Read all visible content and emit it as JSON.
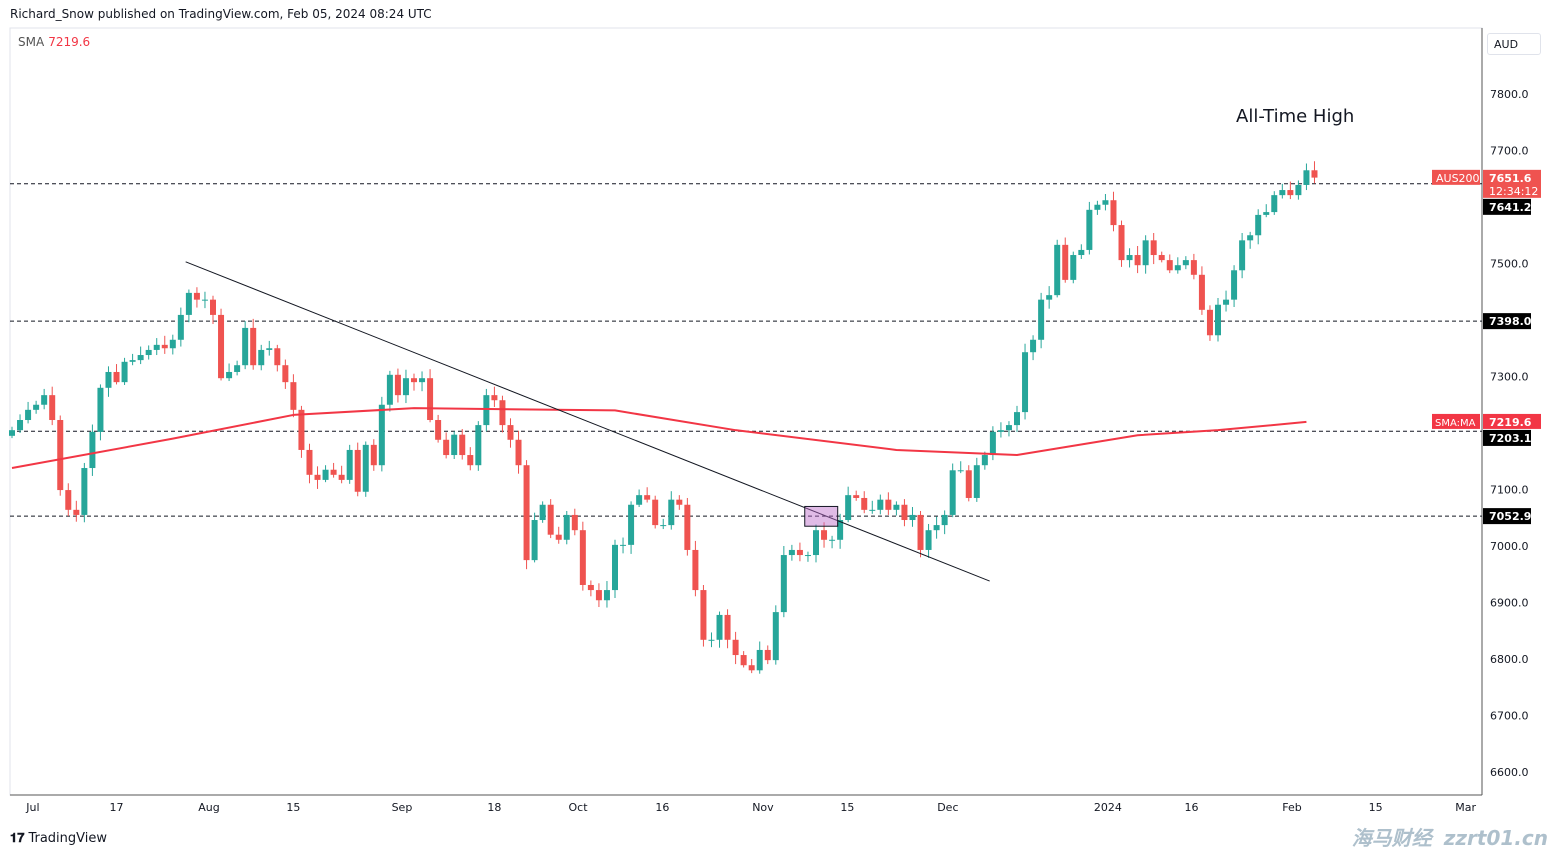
{
  "header": {
    "published": "Richard_Snow published on TradingView.com, Feb 05, 2024 08:24 UTC"
  },
  "legend": {
    "label": "SMA",
    "value": "7219.6"
  },
  "currency": "AUD",
  "footer": {
    "brand": "TradingView"
  },
  "watermark": [
    "海马财经",
    "zzrt01.cn"
  ],
  "colors": {
    "up": "#26a69a",
    "down": "#ef5350",
    "sma": "#f23645",
    "level_label_bg": "#000000"
  },
  "chart_data": {
    "type": "candlestick",
    "symbol": "AUS200",
    "ylim": [
      6600,
      7800
    ],
    "y_ticks": [
      "7800.0",
      "7700.0",
      "7500.0",
      "7300.0",
      "7100.0",
      "7000.0",
      "6900.0",
      "6800.0",
      "6700.0",
      "6600.0"
    ],
    "y_tick_values": [
      7800,
      7700,
      7500,
      7300,
      7100,
      7000,
      6900,
      6800,
      6700,
      6600
    ],
    "x_ticks": [
      {
        "label": "Jul",
        "bar": 2.6
      },
      {
        "label": "17",
        "bar": 13
      },
      {
        "label": "Aug",
        "bar": 24.5
      },
      {
        "label": "15",
        "bar": 35
      },
      {
        "label": "Sep",
        "bar": 48.5
      },
      {
        "label": "18",
        "bar": 60
      },
      {
        "label": "Oct",
        "bar": 70.4
      },
      {
        "label": "16",
        "bar": 80.9
      },
      {
        "label": "Nov",
        "bar": 93.4
      },
      {
        "label": "15",
        "bar": 103.9
      },
      {
        "label": "Dec",
        "bar": 116.4
      },
      {
        "label": "2024",
        "bar": 136.3
      },
      {
        "label": "16",
        "bar": 146.7
      },
      {
        "label": "Feb",
        "bar": 159.2
      },
      {
        "label": "15",
        "bar": 169.6
      },
      {
        "label": "Mar",
        "bar": 180.8
      }
    ],
    "close": [
      7205,
      7223,
      7241,
      7250,
      7267,
      7223,
      7099,
      7064,
      7055,
      7138,
      7202,
      7280,
      7308,
      7290,
      7326,
      7329,
      7338,
      7347,
      7356,
      7350,
      7365,
      7409,
      7448,
      7436,
      7436,
      7409,
      7297,
      7308,
      7320,
      7386,
      7320,
      7347,
      7350,
      7320,
      7290,
      7241,
      7170,
      7126,
      7117,
      7135,
      7126,
      7117,
      7170,
      7096,
      7179,
      7143,
      7250,
      7303,
      7267,
      7297,
      7290,
      7297,
      7223,
      7188,
      7161,
      7197,
      7161,
      7143,
      7214,
      7267,
      7258,
      7214,
      7188,
      7143,
      6975,
      7046,
      7073,
      7020,
      7011,
      7055,
      7028,
      6931,
      6922,
      6904,
      6922,
      7002,
      7002,
      7073,
      7090,
      7082,
      7037,
      7037,
      7082,
      7073,
      6993,
      6922,
      6834,
      6834,
      6878,
      6834,
      6807,
      6789,
      6780,
      6816,
      6798,
      6883,
      6984,
      6993,
      6984,
      6984,
      7028,
      7011,
      7011,
      7046,
      7090,
      7085,
      7064,
      7064,
      7082,
      7064,
      7073,
      7046,
      7055,
      6993,
      7028,
      7037,
      7055,
      7134,
      7134,
      7085,
      7143,
      7161,
      7202,
      7205,
      7214,
      7237,
      7343,
      7365,
      7436,
      7444,
      7533,
      7471,
      7515,
      7524,
      7595,
      7604,
      7612,
      7568,
      7506,
      7515,
      7497,
      7541,
      7515,
      7506,
      7488,
      7497,
      7506,
      7480,
      7418,
      7373,
      7427,
      7436,
      7488,
      7541,
      7550,
      7586,
      7591,
      7621,
      7630,
      7621,
      7639,
      7665,
      7652
    ],
    "sma": [
      {
        "bar": 0,
        "value": 7138
      },
      {
        "bar": 20,
        "value": 7190
      },
      {
        "bar": 35,
        "value": 7232
      },
      {
        "bar": 50,
        "value": 7244
      },
      {
        "bar": 75,
        "value": 7240
      },
      {
        "bar": 90,
        "value": 7205
      },
      {
        "bar": 110,
        "value": 7170
      },
      {
        "bar": 125,
        "value": 7161
      },
      {
        "bar": 140,
        "value": 7196
      },
      {
        "bar": 150,
        "value": 7205
      },
      {
        "bar": 161,
        "value": 7219.6
      }
    ],
    "levels": [
      {
        "value": 7641.2,
        "label": "7641.2"
      },
      {
        "value": 7398.0,
        "label": "7398.0"
      },
      {
        "value": 7203.1,
        "label": "7203.1"
      },
      {
        "value": 7052.9,
        "label": "7052.9"
      }
    ],
    "trendline": {
      "from": {
        "bar": 21.6,
        "price": 7503
      },
      "to": {
        "bar": 121.6,
        "price": 6938
      }
    },
    "highlight_box": {
      "bars": [
        98.6,
        102.7
      ],
      "prices": [
        7035,
        7070
      ]
    },
    "annotation": "All-Time High",
    "last_price": {
      "symbol": "AUS200",
      "value": "7651.6",
      "countdown": "12:34:12"
    },
    "sma_label": {
      "name": "SMA:MA",
      "value": "7219.6"
    }
  }
}
